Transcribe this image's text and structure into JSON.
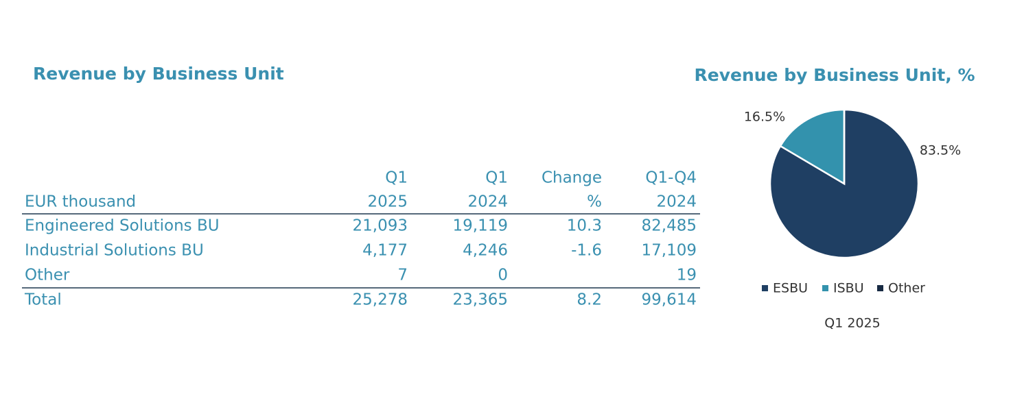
{
  "table": {
    "title": "Revenue by Business Unit",
    "header": [
      [
        null,
        "Q1",
        "Q1",
        "Change",
        "Q1-Q4"
      ],
      [
        "EUR thousand",
        "2025",
        "2024",
        "%",
        "2024"
      ]
    ],
    "rows": [
      [
        "Engineered Solutions BU",
        "21,093",
        "19,119",
        "10.3",
        "82,485"
      ],
      [
        "Industrial Solutions BU",
        "4,177",
        "4,246",
        "-1.6",
        "17,109"
      ],
      [
        "Other",
        "7",
        "0",
        null,
        "19"
      ]
    ],
    "total": [
      "Total",
      "25,278",
      "23,365",
      "8.2",
      "99,614"
    ]
  },
  "chart_data": {
    "type": "pie",
    "title": "Revenue by Business Unit, %",
    "categories": [
      "ESBU",
      "ISBU",
      "Other"
    ],
    "values": [
      83.5,
      16.5,
      0
    ],
    "value_labels": [
      "83.5%",
      "16.5%",
      null
    ],
    "colors": [
      "#1f3f63",
      "#3392ad",
      "#172a43"
    ],
    "legend": "bottom",
    "caption": "Q1 2025"
  }
}
